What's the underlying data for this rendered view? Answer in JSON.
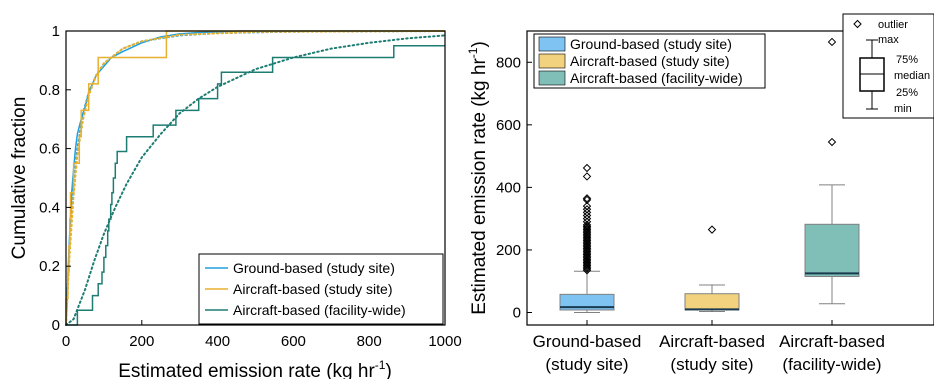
{
  "colors": {
    "ground": "#1f9fe0",
    "aircraft_site": "#e8b02f",
    "aircraft_facility": "#1e7d73",
    "box_ground_fill": "#7fc3f2",
    "box_aircraft_site_fill": "#f2d27f",
    "box_aircraft_facility_fill": "#7fbfb8",
    "median_line": "#1a3a4f",
    "whisker": "#808080"
  },
  "chart_data": [
    {
      "type": "line",
      "subtype": "empirical-cdf-with-fitted-curves",
      "title": "",
      "xlabel": "Estimated emission rate (kg hr",
      "xlabel_sup": "-1",
      "xlabel_close": ")",
      "ylabel": "Cumulative fraction",
      "xlim": [
        0,
        1000
      ],
      "ylim": [
        0,
        1
      ],
      "xticks": [
        "0",
        "200",
        "400",
        "600",
        "800",
        "1000"
      ],
      "yticks": [
        "0",
        "0.2",
        "0.4",
        "0.6",
        "0.8",
        "1"
      ],
      "legend_position": "bottom-right",
      "series": [
        {
          "name": "Ground-based (study site)",
          "color_key": "ground",
          "style": "step",
          "points": [
            [
              0,
              0
            ],
            [
              3,
              0.08
            ],
            [
              6,
              0.2
            ],
            [
              10,
              0.32
            ],
            [
              15,
              0.45
            ],
            [
              20,
              0.53
            ],
            [
              25,
              0.6
            ],
            [
              30,
              0.65
            ],
            [
              40,
              0.7
            ],
            [
              50,
              0.74
            ],
            [
              60,
              0.79
            ],
            [
              70,
              0.82
            ],
            [
              80,
              0.85
            ],
            [
              100,
              0.88
            ],
            [
              120,
              0.91
            ],
            [
              150,
              0.93
            ],
            [
              200,
              0.96
            ],
            [
              250,
              0.98
            ],
            [
              300,
              0.99
            ],
            [
              350,
              0.995
            ],
            [
              460,
              1.0
            ],
            [
              1000,
              1.0
            ]
          ]
        },
        {
          "name": "Ground-based (study site) fit",
          "color_key": "ground",
          "style": "dotted",
          "points": [
            [
              0,
              0
            ],
            [
              10,
              0.28
            ],
            [
              20,
              0.47
            ],
            [
              30,
              0.6
            ],
            [
              45,
              0.72
            ],
            [
              60,
              0.79
            ],
            [
              80,
              0.85
            ],
            [
              100,
              0.89
            ],
            [
              150,
              0.94
            ],
            [
              200,
              0.965
            ],
            [
              300,
              0.985
            ],
            [
              400,
              0.993
            ],
            [
              600,
              0.998
            ],
            [
              1000,
              1.0
            ]
          ]
        },
        {
          "name": "Aircraft-based (study site)",
          "color_key": "aircraft_site",
          "style": "step",
          "points": [
            [
              0,
              0
            ],
            [
              0,
              0.09
            ],
            [
              5,
              0.09
            ],
            [
              5,
              0.18
            ],
            [
              8,
              0.18
            ],
            [
              8,
              0.27
            ],
            [
              10,
              0.27
            ],
            [
              10,
              0.36
            ],
            [
              12,
              0.36
            ],
            [
              12,
              0.45
            ],
            [
              20,
              0.45
            ],
            [
              20,
              0.55
            ],
            [
              35,
              0.55
            ],
            [
              35,
              0.64
            ],
            [
              40,
              0.64
            ],
            [
              40,
              0.73
            ],
            [
              60,
              0.73
            ],
            [
              60,
              0.82
            ],
            [
              85,
              0.82
            ],
            [
              85,
              0.91
            ],
            [
              265,
              0.91
            ],
            [
              265,
              1.0
            ],
            [
              1000,
              1.0
            ]
          ]
        },
        {
          "name": "Aircraft-based (study site) fit",
          "color_key": "aircraft_site",
          "style": "dotted",
          "points": [
            [
              0,
              0
            ],
            [
              10,
              0.25
            ],
            [
              20,
              0.44
            ],
            [
              30,
              0.58
            ],
            [
              45,
              0.7
            ],
            [
              60,
              0.78
            ],
            [
              80,
              0.85
            ],
            [
              100,
              0.89
            ],
            [
              150,
              0.94
            ],
            [
              200,
              0.965
            ],
            [
              300,
              0.987
            ],
            [
              500,
              0.997
            ],
            [
              1000,
              1.0
            ]
          ]
        },
        {
          "name": "Aircraft-based (facility-wide)",
          "color_key": "aircraft_facility",
          "style": "step",
          "points": [
            [
              0,
              0
            ],
            [
              30,
              0
            ],
            [
              30,
              0.05
            ],
            [
              70,
              0.05
            ],
            [
              70,
              0.1
            ],
            [
              85,
              0.1
            ],
            [
              85,
              0.14
            ],
            [
              95,
              0.14
            ],
            [
              95,
              0.18
            ],
            [
              100,
              0.18
            ],
            [
              100,
              0.23
            ],
            [
              105,
              0.23
            ],
            [
              105,
              0.27
            ],
            [
              110,
              0.27
            ],
            [
              110,
              0.32
            ],
            [
              113,
              0.32
            ],
            [
              113,
              0.36
            ],
            [
              118,
              0.36
            ],
            [
              118,
              0.41
            ],
            [
              121,
              0.41
            ],
            [
              121,
              0.45
            ],
            [
              125,
              0.45
            ],
            [
              125,
              0.5
            ],
            [
              130,
              0.5
            ],
            [
              130,
              0.55
            ],
            [
              135,
              0.55
            ],
            [
              135,
              0.59
            ],
            [
              160,
              0.59
            ],
            [
              160,
              0.64
            ],
            [
              230,
              0.64
            ],
            [
              230,
              0.68
            ],
            [
              290,
              0.68
            ],
            [
              290,
              0.73
            ],
            [
              350,
              0.73
            ],
            [
              350,
              0.77
            ],
            [
              400,
              0.77
            ],
            [
              400,
              0.82
            ],
            [
              410,
              0.82
            ],
            [
              410,
              0.86
            ],
            [
              545,
              0.86
            ],
            [
              545,
              0.91
            ],
            [
              865,
              0.91
            ],
            [
              865,
              0.95
            ],
            [
              1000,
              0.95
            ]
          ]
        },
        {
          "name": "Aircraft-based (facility-wide) fit",
          "color_key": "aircraft_facility",
          "style": "dotted",
          "points": [
            [
              0,
              0
            ],
            [
              20,
              0.02
            ],
            [
              50,
              0.12
            ],
            [
              75,
              0.22
            ],
            [
              100,
              0.31
            ],
            [
              130,
              0.4
            ],
            [
              160,
              0.48
            ],
            [
              200,
              0.57
            ],
            [
              250,
              0.65
            ],
            [
              300,
              0.72
            ],
            [
              350,
              0.77
            ],
            [
              400,
              0.81
            ],
            [
              450,
              0.84
            ],
            [
              500,
              0.87
            ],
            [
              600,
              0.91
            ],
            [
              700,
              0.94
            ],
            [
              800,
              0.96
            ],
            [
              900,
              0.975
            ],
            [
              1000,
              0.985
            ]
          ]
        }
      ],
      "legend_entries": [
        "Ground-based (study site)",
        "Aircraft-based (study site)",
        "Aircraft-based (facility-wide)"
      ]
    },
    {
      "type": "box",
      "title": "",
      "ylabel": "Estimated emission rate (kg hr",
      "ylabel_sup": "-1",
      "ylabel_close": ")",
      "ylim": [
        -40,
        900
      ],
      "yticks": [
        "0",
        "200",
        "400",
        "600",
        "800"
      ],
      "legend_position": "top-left",
      "categories": [
        {
          "line1": "Ground-based",
          "line2": "(study site)"
        },
        {
          "line1": "Aircraft-based",
          "line2": "(study site)"
        },
        {
          "line1": "Aircraft-based",
          "line2": "(facility-wide)"
        }
      ],
      "boxes": [
        {
          "name": "Ground-based (study site)",
          "fill_key": "box_ground_fill",
          "min": 0,
          "q1": 8,
          "median": 17,
          "q3": 58,
          "max": 132,
          "outliers": [
            135,
            140,
            145,
            150,
            155,
            160,
            165,
            170,
            175,
            180,
            185,
            190,
            195,
            200,
            205,
            210,
            215,
            220,
            225,
            230,
            235,
            240,
            245,
            250,
            255,
            260,
            265,
            270,
            275,
            280,
            290,
            300,
            310,
            320,
            330,
            340,
            360,
            365,
            435,
            462
          ]
        },
        {
          "name": "Aircraft-based (study site)",
          "fill_key": "box_aircraft_site_fill",
          "min": 3,
          "q1": 8,
          "median": 10,
          "q3": 60,
          "max": 88,
          "outliers": [
            265
          ]
        },
        {
          "name": "Aircraft-based (facility-wide)",
          "fill_key": "box_aircraft_facility_fill",
          "min": 28,
          "q1": 115,
          "median": 125,
          "q3": 282,
          "max": 408,
          "outliers": [
            545,
            865
          ]
        }
      ],
      "key": {
        "outlier": "outlier",
        "max": "max",
        "q3": "75%",
        "median": "median",
        "q1": "25%",
        "min": "min"
      }
    }
  ]
}
